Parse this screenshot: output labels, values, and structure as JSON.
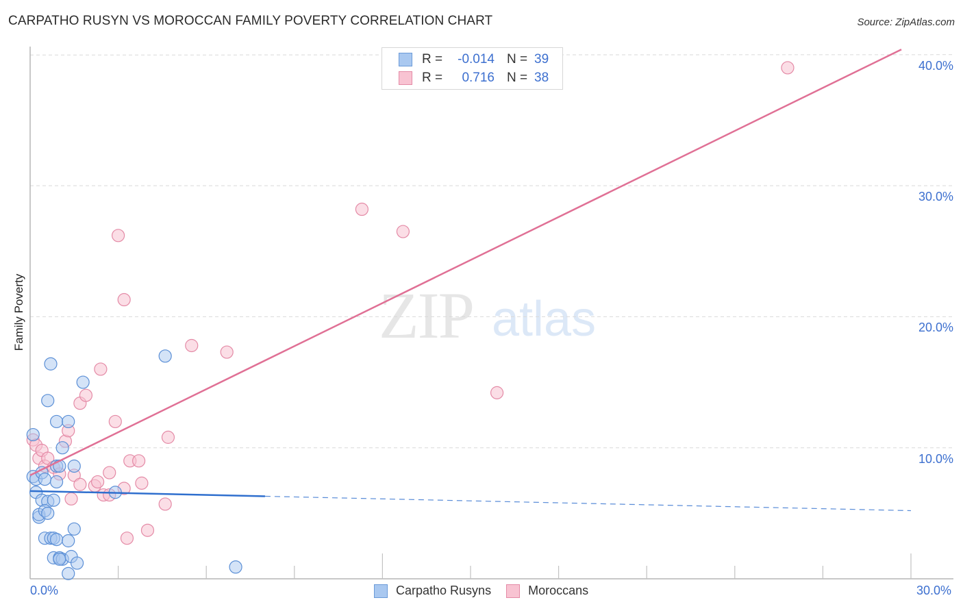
{
  "header": {
    "title": "CARPATHO RUSYN VS MOROCCAN FAMILY POVERTY CORRELATION CHART",
    "source": "Source: ZipAtlas.com"
  },
  "watermark": {
    "zip": "ZIP",
    "atlas": "atlas"
  },
  "legend": {
    "rows": [
      {
        "r_label": "R =",
        "r_value": "-0.014",
        "n_label": "N =",
        "n_value": "39",
        "color": "#a9c8f0",
        "border": "#6a9ad8"
      },
      {
        "r_label": "R =",
        "r_value": "0.716",
        "n_label": "N =",
        "n_value": "38",
        "color": "#f8c3d2",
        "border": "#e48aa6"
      }
    ]
  },
  "axes": {
    "ylabel": "Family Poverty",
    "yticks": [
      "10.0%",
      "20.0%",
      "30.0%",
      "40.0%"
    ],
    "xticks": [
      "0.0%",
      "30.0%"
    ]
  },
  "bottom_legend": {
    "items": [
      {
        "label": "Carpatho Rusyns",
        "color": "#a9c8f0",
        "border": "#6a9ad8"
      },
      {
        "label": "Moroccans",
        "color": "#f8c3d2",
        "border": "#e48aa6"
      }
    ]
  },
  "colors": {
    "blue_fill": "#a9c8f0",
    "blue_stroke": "#5b8fd6",
    "blue_line": "#2f6fce",
    "pink_fill": "#f8c3d2",
    "pink_stroke": "#e48aa6",
    "pink_line": "#e07095",
    "tick_text": "#3c6fcf"
  },
  "chart_data": {
    "type": "scatter",
    "title": "CARPATHO RUSYN VS MOROCCAN FAMILY POVERTY CORRELATION CHART",
    "xlabel": "",
    "ylabel": "Family Poverty",
    "xlim": [
      0,
      30
    ],
    "ylim": [
      0,
      40.5
    ],
    "x_tick_labels": [
      "0.0%",
      "30.0%"
    ],
    "y_tick_labels": [
      "10.0%",
      "20.0%",
      "30.0%",
      "40.0%"
    ],
    "grid": "horizontal dashed",
    "legend_position": "top-center (stats) and bottom-center (series)",
    "series": [
      {
        "name": "Carpatho Rusyns",
        "r": -0.014,
        "n": 39,
        "trend": {
          "x": [
            0,
            8,
            30
          ],
          "y": [
            6.7,
            6.3,
            5.2
          ],
          "solid_until_x": 8
        },
        "points": [
          [
            0.1,
            11.0
          ],
          [
            0.1,
            7.8
          ],
          [
            0.2,
            7.6
          ],
          [
            0.2,
            6.6
          ],
          [
            0.3,
            4.7
          ],
          [
            0.3,
            4.9
          ],
          [
            0.4,
            6.0
          ],
          [
            0.4,
            8.1
          ],
          [
            0.5,
            7.6
          ],
          [
            0.5,
            3.1
          ],
          [
            0.6,
            5.9
          ],
          [
            0.5,
            5.2
          ],
          [
            0.6,
            5.0
          ],
          [
            0.7,
            3.1
          ],
          [
            0.8,
            3.1
          ],
          [
            0.9,
            3.0
          ],
          [
            0.6,
            13.6
          ],
          [
            0.7,
            16.4
          ],
          [
            0.8,
            6.0
          ],
          [
            0.8,
            1.6
          ],
          [
            0.9,
            8.6
          ],
          [
            0.9,
            12.0
          ],
          [
            0.9,
            7.4
          ],
          [
            1.0,
            1.6
          ],
          [
            1.1,
            1.5
          ],
          [
            1.0,
            1.5
          ],
          [
            1.1,
            10.0
          ],
          [
            1.3,
            2.9
          ],
          [
            1.3,
            12.0
          ],
          [
            1.4,
            1.7
          ],
          [
            1.5,
            3.8
          ],
          [
            1.6,
            1.2
          ],
          [
            1.3,
            0.4
          ],
          [
            1.8,
            15.0
          ],
          [
            2.9,
            6.6
          ],
          [
            1.5,
            8.6
          ],
          [
            4.6,
            17.0
          ],
          [
            7.0,
            0.9
          ],
          [
            1.0,
            8.6
          ]
        ]
      },
      {
        "name": "Moroccans",
        "r": 0.716,
        "n": 38,
        "trend": {
          "x": [
            0,
            30
          ],
          "y": [
            7.9,
            40.5
          ]
        },
        "points": [
          [
            0.1,
            10.6
          ],
          [
            0.2,
            10.2
          ],
          [
            0.3,
            9.2
          ],
          [
            0.4,
            9.8
          ],
          [
            0.5,
            8.6
          ],
          [
            0.6,
            9.2
          ],
          [
            0.8,
            8.5
          ],
          [
            1.0,
            8.0
          ],
          [
            1.2,
            10.5
          ],
          [
            1.3,
            11.3
          ],
          [
            1.4,
            6.1
          ],
          [
            1.5,
            7.9
          ],
          [
            1.7,
            7.2
          ],
          [
            1.7,
            13.4
          ],
          [
            1.9,
            14.0
          ],
          [
            2.2,
            7.1
          ],
          [
            2.3,
            7.4
          ],
          [
            2.4,
            16.0
          ],
          [
            2.5,
            6.4
          ],
          [
            2.7,
            6.4
          ],
          [
            2.7,
            8.1
          ],
          [
            2.9,
            12.0
          ],
          [
            3.0,
            26.2
          ],
          [
            3.2,
            21.3
          ],
          [
            3.2,
            6.9
          ],
          [
            3.3,
            3.1
          ],
          [
            3.4,
            9.0
          ],
          [
            3.7,
            9.0
          ],
          [
            3.8,
            7.3
          ],
          [
            4.0,
            3.7
          ],
          [
            4.6,
            5.7
          ],
          [
            4.7,
            10.8
          ],
          [
            5.5,
            17.8
          ],
          [
            6.7,
            17.3
          ],
          [
            11.3,
            28.2
          ],
          [
            12.7,
            26.5
          ],
          [
            15.9,
            14.2
          ],
          [
            25.8,
            39.0
          ]
        ]
      }
    ]
  }
}
